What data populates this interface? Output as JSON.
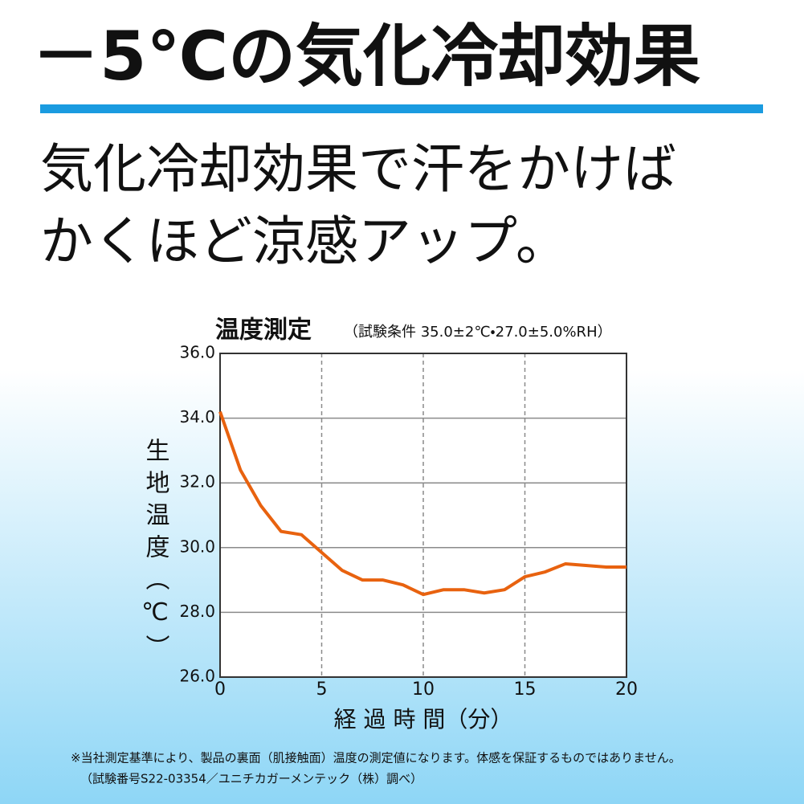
{
  "header": {
    "title": "－5℃の気化冷却効果",
    "lines": [
      "気化冷却効果で汗をかけば",
      "かくほど涼感アップ。"
    ]
  },
  "chart_data": {
    "type": "line",
    "title": "温度測定",
    "subtitle": "（試験条件 35.0±2℃・27.0±5.0%RH）",
    "x_label": "経 過 時 間（分）",
    "y_label": "生地温度（℃）",
    "x": [
      0,
      1,
      2,
      3,
      4,
      5,
      6,
      7,
      8,
      9,
      10,
      11,
      12,
      13,
      14,
      15,
      16,
      17,
      18,
      19,
      20
    ],
    "series": [
      {
        "color": "#e8620f",
        "values": [
          34.2,
          32.4,
          31.3,
          30.5,
          30.4,
          29.85,
          29.3,
          29.0,
          29.0,
          28.85,
          28.55,
          28.7,
          28.7,
          28.6,
          28.7,
          29.1,
          29.25,
          29.5,
          29.45,
          29.4,
          29.4
        ]
      }
    ],
    "xlim": [
      0,
      20
    ],
    "xticks": [
      0,
      5,
      10,
      15,
      20
    ],
    "ylim": [
      26,
      36
    ],
    "yticks": [
      {
        "value": 26,
        "label": "26.0"
      },
      {
        "value": 28,
        "label": "28.0"
      },
      {
        "value": 30,
        "label": "30.0"
      },
      {
        "value": 32,
        "label": "32.0"
      },
      {
        "value": 34,
        "label": "34.0"
      },
      {
        "value": 36,
        "label": "36.0"
      }
    ],
    "grid": true
  },
  "notes": [
    "※当社測定基準により、製品の裏面（肌接触面）温度の測定値になります。体感を保証するものではありません。",
    "（試験番号S22-03354／ユニチカガーメンテック（株）調べ）"
  ]
}
